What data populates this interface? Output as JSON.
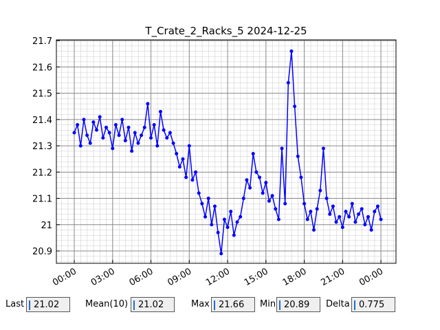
{
  "chart_data": {
    "type": "line",
    "title": "T_Crate_2_Racks_5 2024-12-25",
    "x": [
      0,
      0.25,
      0.5,
      0.75,
      1,
      1.25,
      1.5,
      1.75,
      2,
      2.25,
      2.5,
      2.75,
      3,
      3.25,
      3.5,
      3.75,
      4,
      4.25,
      4.5,
      4.75,
      5,
      5.25,
      5.5,
      5.75,
      6,
      6.25,
      6.5,
      6.75,
      7,
      7.25,
      7.5,
      7.75,
      8,
      8.25,
      8.5,
      8.75,
      9,
      9.25,
      9.5,
      9.75,
      10,
      10.25,
      10.5,
      10.75,
      11,
      11.25,
      11.5,
      11.75,
      12,
      12.25,
      12.5,
      12.75,
      13,
      13.25,
      13.5,
      13.75,
      14,
      14.25,
      14.5,
      14.75,
      15,
      15.25,
      15.5,
      15.75,
      16,
      16.25,
      16.5,
      16.75,
      17,
      17.25,
      17.5,
      17.75,
      18,
      18.25,
      18.5,
      18.75,
      19,
      19.25,
      19.5,
      19.75,
      20,
      20.25,
      20.5,
      20.75,
      21,
      21.25,
      21.5,
      21.75,
      22,
      22.25,
      22.5,
      22.75,
      23,
      23.25,
      23.5,
      23.75,
      24
    ],
    "values": [
      21.35,
      21.38,
      21.3,
      21.4,
      21.34,
      21.31,
      21.39,
      21.36,
      21.41,
      21.33,
      21.37,
      21.35,
      21.29,
      21.38,
      21.34,
      21.4,
      21.32,
      21.37,
      21.28,
      21.35,
      21.31,
      21.34,
      21.37,
      21.46,
      21.33,
      21.38,
      21.3,
      21.43,
      21.36,
      21.33,
      21.35,
      21.31,
      21.27,
      21.22,
      21.25,
      21.18,
      21.3,
      21.17,
      21.2,
      21.12,
      21.08,
      21.03,
      21.1,
      21.0,
      21.07,
      20.97,
      20.89,
      21.02,
      20.99,
      21.05,
      20.96,
      21.01,
      21.03,
      21.1,
      21.17,
      21.14,
      21.27,
      21.2,
      21.18,
      21.12,
      21.16,
      21.09,
      21.11,
      21.06,
      21.02,
      21.29,
      21.08,
      21.54,
      21.66,
      21.45,
      21.26,
      21.18,
      21.08,
      21.02,
      21.05,
      20.98,
      21.06,
      21.13,
      21.29,
      21.1,
      21.04,
      21.07,
      21.01,
      21.03,
      20.99,
      21.05,
      21.03,
      21.08,
      21.01,
      21.04,
      21.06,
      21.0,
      21.03,
      20.98,
      21.05,
      21.07,
      21.02
    ],
    "color": "#0000ff",
    "xlim": [
      -1.4,
      25.18
    ],
    "xticks": [
      {
        "value": 0,
        "label": "00:00"
      },
      {
        "value": 3,
        "label": "03:00"
      },
      {
        "value": 6,
        "label": "06:00"
      },
      {
        "value": 9,
        "label": "09:00"
      },
      {
        "value": 12,
        "label": "12:00"
      },
      {
        "value": 15,
        "label": "15:00"
      },
      {
        "value": 18,
        "label": "18:00"
      },
      {
        "value": 21,
        "label": "21:00"
      },
      {
        "value": 24,
        "label": "00:00"
      }
    ],
    "ylim": [
      20.853,
      21.703
    ],
    "yticks": [
      20.9,
      21.0,
      21.1,
      21.2,
      21.3,
      21.4,
      21.5,
      21.6,
      21.7
    ],
    "grid": true
  },
  "stats": [
    {
      "label": "Last",
      "value": 21.02
    },
    {
      "label": "Mean(10)",
      "value": 21.02
    },
    {
      "label": "Max",
      "value": 21.66
    },
    {
      "label": "Min",
      "value": 20.89
    },
    {
      "label": "Delta",
      "value": 0.775
    }
  ]
}
